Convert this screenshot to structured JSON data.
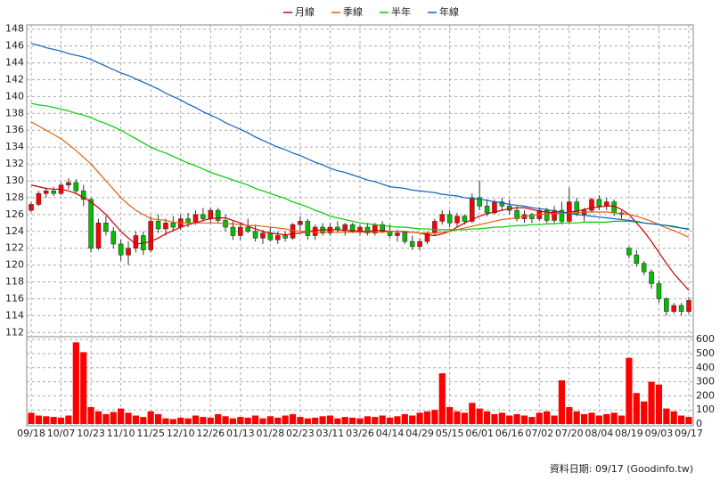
{
  "chart_data": [
    {
      "type": "candlestick",
      "categories": [
        "09/18",
        null,
        null,
        null,
        "10/07",
        null,
        null,
        null,
        "10/23",
        null,
        null,
        null,
        "11/10",
        null,
        null,
        null,
        "11/25",
        null,
        null,
        null,
        "12/10",
        null,
        null,
        null,
        "12/26",
        null,
        null,
        null,
        "01/13",
        null,
        null,
        null,
        "01/28",
        null,
        null,
        null,
        "02/23",
        null,
        null,
        null,
        "03/11",
        null,
        null,
        null,
        "03/26",
        null,
        null,
        null,
        "04/14",
        null,
        null,
        null,
        "04/29",
        null,
        null,
        null,
        "05/15",
        null,
        null,
        null,
        "06/01",
        null,
        null,
        null,
        "06/16",
        null,
        null,
        null,
        "07/02",
        null,
        null,
        null,
        "07/20",
        null,
        null,
        null,
        "08/04",
        null,
        null,
        null,
        "08/19",
        null,
        null,
        null,
        "09/03",
        null,
        null,
        null,
        "09/17"
      ],
      "open": [
        126.5,
        127.2,
        128.5,
        128.8,
        128.5,
        129.5,
        129.8,
        128.8,
        127.8,
        122.0,
        125.0,
        124.0,
        122.5,
        121.2,
        122.0,
        123.5,
        121.8,
        125.2,
        124.3,
        125.0,
        124.5,
        125.5,
        125.0,
        126.0,
        125.5,
        126.5,
        125.3,
        124.5,
        123.5,
        124.5,
        124.0,
        123.2,
        123.8,
        123.0,
        123.5,
        123.2,
        124.8,
        125.2,
        123.5,
        124.5,
        123.8,
        124.5,
        124.2,
        124.8,
        124.0,
        124.5,
        123.8,
        124.8,
        124.0,
        123.5,
        123.8,
        122.8,
        122.2,
        122.8,
        123.8,
        125.2,
        126.0,
        125.0,
        125.8,
        125.2,
        128.0,
        127.0,
        126.2,
        127.5,
        127.0,
        126.5,
        125.5,
        126.0,
        125.5,
        126.5,
        125.3,
        126.5,
        125.2,
        127.5,
        126.0,
        126.5,
        127.8,
        127.0,
        127.5,
        126.2,
        122.0,
        121.2,
        120.2,
        119.2,
        117.8,
        116.0,
        114.5,
        115.2,
        114.5
      ],
      "high": [
        127.5,
        128.8,
        129.2,
        129.3,
        129.8,
        130.3,
        130.2,
        129.5,
        128.0,
        125.5,
        125.8,
        124.5,
        123.0,
        122.8,
        124.0,
        124.0,
        125.8,
        126.0,
        125.5,
        125.8,
        126.0,
        126.2,
        126.5,
        126.8,
        126.8,
        126.8,
        126.0,
        125.2,
        125.0,
        125.5,
        124.8,
        124.2,
        124.5,
        124.0,
        124.0,
        125.0,
        125.8,
        125.5,
        124.8,
        125.0,
        125.0,
        125.2,
        125.0,
        125.0,
        124.8,
        125.0,
        125.0,
        125.2,
        124.8,
        124.2,
        124.0,
        123.5,
        123.2,
        124.0,
        125.5,
        126.5,
        126.5,
        126.2,
        126.0,
        128.5,
        130.0,
        127.8,
        127.8,
        128.0,
        127.8,
        127.0,
        126.5,
        126.2,
        126.8,
        126.8,
        127.0,
        127.5,
        129.2,
        128.0,
        126.8,
        128.0,
        128.3,
        128.0,
        127.8,
        126.5,
        122.2,
        121.8,
        120.5,
        119.5,
        118.2,
        116.2,
        115.5,
        115.5,
        116.2
      ],
      "low": [
        126.3,
        127.0,
        128.0,
        128.2,
        128.3,
        129.0,
        128.5,
        127.0,
        121.5,
        121.8,
        123.5,
        122.0,
        120.5,
        120.0,
        121.5,
        121.2,
        121.5,
        123.8,
        123.5,
        124.0,
        124.2,
        124.5,
        124.8,
        125.2,
        125.0,
        125.0,
        124.0,
        123.0,
        123.0,
        123.8,
        122.8,
        122.5,
        122.8,
        122.5,
        122.8,
        123.0,
        124.0,
        123.0,
        123.0,
        123.5,
        123.5,
        123.8,
        123.5,
        123.8,
        123.5,
        123.5,
        123.5,
        123.8,
        123.2,
        122.8,
        122.5,
        121.8,
        121.8,
        122.5,
        123.5,
        124.8,
        124.5,
        124.5,
        124.8,
        125.0,
        126.5,
        125.8,
        126.0,
        126.5,
        126.0,
        125.2,
        125.0,
        125.0,
        125.2,
        125.0,
        125.0,
        124.8,
        125.0,
        125.8,
        125.2,
        126.2,
        126.5,
        126.5,
        125.8,
        125.5,
        120.8,
        119.8,
        118.8,
        117.2,
        115.5,
        114.0,
        114.2,
        114.0,
        114.2
      ],
      "close": [
        127.2,
        128.5,
        128.8,
        128.5,
        129.5,
        129.8,
        128.8,
        127.8,
        122.0,
        125.0,
        124.0,
        122.5,
        121.2,
        122.0,
        123.5,
        121.8,
        125.2,
        124.3,
        125.0,
        124.5,
        125.5,
        125.0,
        126.0,
        125.5,
        126.5,
        125.3,
        124.5,
        123.5,
        124.5,
        124.0,
        123.2,
        123.8,
        123.0,
        123.5,
        123.2,
        124.8,
        125.2,
        123.5,
        124.5,
        123.8,
        124.5,
        124.2,
        124.8,
        124.0,
        124.5,
        123.8,
        124.8,
        124.0,
        123.5,
        123.8,
        122.8,
        122.2,
        122.8,
        123.8,
        125.2,
        126.0,
        125.0,
        125.8,
        125.2,
        128.0,
        127.0,
        126.2,
        127.5,
        127.0,
        126.5,
        125.5,
        126.0,
        125.5,
        126.5,
        125.3,
        126.5,
        125.2,
        127.5,
        126.0,
        126.5,
        127.8,
        127.0,
        127.5,
        126.2,
        126.0,
        121.2,
        120.2,
        119.2,
        117.8,
        116.0,
        114.5,
        115.2,
        114.5,
        115.8
      ],
      "up_color": "#ff0000",
      "down_color": "#00c000",
      "series": [
        {
          "name": "月線",
          "color": "#cc0000",
          "values": [
            129.5,
            129.3,
            129.1,
            129.0,
            129.0,
            128.8,
            128.5,
            128.0,
            127.5,
            126.8,
            126.0,
            125.0,
            124.0,
            123.2,
            122.5,
            122.6,
            122.8,
            123.2,
            123.7,
            124.1,
            124.5,
            124.8,
            125.0,
            125.3,
            125.5,
            125.6,
            125.6,
            125.3,
            125.0,
            124.6,
            124.3,
            124.0,
            123.8,
            123.7,
            123.6,
            123.7,
            123.8,
            124.0,
            124.1,
            124.2,
            124.2,
            124.2,
            124.1,
            124.1,
            124.0,
            124.0,
            124.1,
            124.1,
            124.0,
            124.0,
            123.9,
            123.9,
            123.8,
            123.6,
            123.5,
            123.7,
            124.0,
            124.5,
            125.0,
            125.4,
            125.8,
            126.1,
            126.3,
            126.5,
            126.7,
            126.8,
            126.8,
            126.6,
            126.4,
            126.3,
            126.2,
            126.2,
            126.3,
            126.4,
            126.6,
            126.8,
            126.9,
            127.0,
            127.0,
            126.6,
            126.0,
            125.0,
            124.0,
            122.8,
            121.5,
            120.2,
            119.0,
            118.0,
            117.0
          ]
        },
        {
          "name": "季線",
          "color": "#e06010",
          "values": [
            137.0,
            136.5,
            136.0,
            135.5,
            135.0,
            134.3,
            133.6,
            132.8,
            132.0,
            131.0,
            130.0,
            129.0,
            128.0,
            127.2,
            126.5,
            126.0,
            125.5,
            125.4,
            125.3,
            125.1,
            125.0,
            125.0,
            125.0,
            125.0,
            125.0,
            125.0,
            124.9,
            124.9,
            124.8,
            124.7,
            124.7,
            124.6,
            124.5,
            124.4,
            124.3,
            124.1,
            124.0,
            124.0,
            123.9,
            123.9,
            123.9,
            123.9,
            123.9,
            123.9,
            123.9,
            123.9,
            123.9,
            123.9,
            124.0,
            124.0,
            124.0,
            123.9,
            123.8,
            123.8,
            123.8,
            123.9,
            124.0,
            124.2,
            124.4,
            124.6,
            124.8,
            125.0,
            125.2,
            125.4,
            125.5,
            125.6,
            125.8,
            125.9,
            126.0,
            126.1,
            126.1,
            126.2,
            126.2,
            126.2,
            126.3,
            126.3,
            126.3,
            126.3,
            126.2,
            126.1,
            126.0,
            125.8,
            125.5,
            125.2,
            124.8,
            124.4,
            124.1,
            123.7,
            123.3
          ]
        },
        {
          "name": "半年",
          "color": "#00cc00",
          "values": [
            139.2,
            139.0,
            138.9,
            138.7,
            138.5,
            138.3,
            138.0,
            137.8,
            137.5,
            137.1,
            136.8,
            136.4,
            136.0,
            135.5,
            135.0,
            134.5,
            134.0,
            133.6,
            133.3,
            132.9,
            132.5,
            132.1,
            131.8,
            131.4,
            131.0,
            130.7,
            130.4,
            130.1,
            129.8,
            129.5,
            129.1,
            128.8,
            128.5,
            128.2,
            127.9,
            127.5,
            127.2,
            126.9,
            126.5,
            126.2,
            125.8,
            125.6,
            125.4,
            125.2,
            125.0,
            124.9,
            124.8,
            124.7,
            124.6,
            124.5,
            124.5,
            124.4,
            124.3,
            124.3,
            124.2,
            124.2,
            124.2,
            124.2,
            124.2,
            124.3,
            124.3,
            124.4,
            124.5,
            124.5,
            124.6,
            124.7,
            124.7,
            124.8,
            124.8,
            124.9,
            124.9,
            125.0,
            125.0,
            125.0,
            125.1,
            125.1,
            125.1,
            125.1,
            125.2,
            125.2,
            125.2,
            125.1,
            125.0,
            124.9,
            124.8,
            124.7,
            124.5,
            124.4,
            124.2
          ]
        },
        {
          "name": "年線",
          "color": "#1060c0",
          "values": [
            146.3,
            146.1,
            145.8,
            145.6,
            145.4,
            145.1,
            144.9,
            144.7,
            144.4,
            144.0,
            143.6,
            143.2,
            142.8,
            142.5,
            142.1,
            141.7,
            141.3,
            140.9,
            140.4,
            140.0,
            139.6,
            139.1,
            138.7,
            138.2,
            137.8,
            137.4,
            136.9,
            136.5,
            136.1,
            135.7,
            135.2,
            134.8,
            134.4,
            134.0,
            133.7,
            133.3,
            133.0,
            132.6,
            132.2,
            131.9,
            131.5,
            131.2,
            131.0,
            130.7,
            130.4,
            130.1,
            129.9,
            129.6,
            129.3,
            129.2,
            129.1,
            128.9,
            128.8,
            128.7,
            128.6,
            128.4,
            128.3,
            128.2,
            128.0,
            127.9,
            127.8,
            127.7,
            127.5,
            127.4,
            127.2,
            127.1,
            127.0,
            126.8,
            126.7,
            126.6,
            126.4,
            126.3,
            126.1,
            126.0,
            125.9,
            125.8,
            125.7,
            125.6,
            125.5,
            125.4,
            125.3,
            125.2,
            125.0,
            124.9,
            124.8,
            124.7,
            124.6,
            124.4,
            124.3
          ]
        }
      ],
      "ylim": [
        111.5,
        148.5
      ],
      "yticks": [
        112,
        114,
        116,
        118,
        120,
        122,
        124,
        126,
        128,
        130,
        132,
        134,
        136,
        138,
        140,
        142,
        144,
        146,
        148
      ],
      "grid": true
    },
    {
      "type": "bar",
      "color": "#ff0000",
      "values": [
        80,
        60,
        55,
        50,
        45,
        60,
        580,
        510,
        120,
        90,
        70,
        85,
        110,
        80,
        60,
        50,
        90,
        70,
        40,
        35,
        45,
        40,
        60,
        50,
        45,
        70,
        55,
        40,
        50,
        45,
        60,
        40,
        55,
        45,
        60,
        70,
        50,
        40,
        45,
        55,
        60,
        40,
        50,
        45,
        40,
        55,
        50,
        60,
        45,
        55,
        70,
        60,
        80,
        90,
        100,
        360,
        120,
        90,
        80,
        150,
        110,
        90,
        70,
        80,
        60,
        70,
        60,
        50,
        80,
        90,
        60,
        310,
        120,
        90,
        70,
        80,
        60,
        70,
        80,
        60,
        470,
        220,
        160,
        300,
        280,
        110,
        90,
        60,
        50
      ],
      "ylim": [
        0,
        620
      ],
      "yticks": [
        0,
        100,
        200,
        300,
        400,
        500,
        600
      ],
      "grid": true
    }
  ],
  "footer": "資料日期: 09/17 (Goodinfo.tw)"
}
